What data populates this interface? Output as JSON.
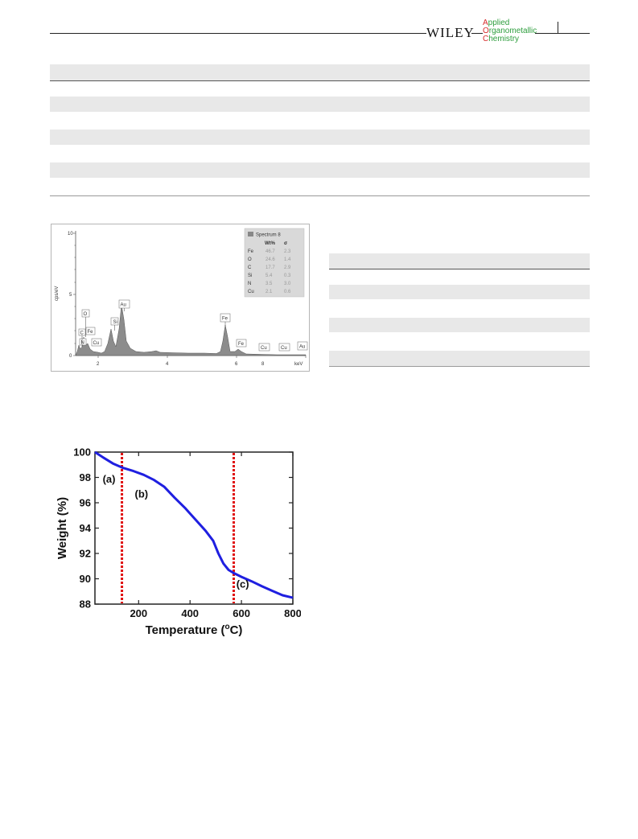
{
  "header": {
    "publisher": "WILEY",
    "journal_lines": [
      {
        "cap": "A",
        "rest": "pplied"
      },
      {
        "cap": "O",
        "rest": "rganometallic"
      },
      {
        "cap": "C",
        "rest": "hemistry"
      }
    ]
  },
  "eds": {
    "legend_title": "Spectrum 8",
    "legend_col1": "Wt%",
    "legend_col2": "σ",
    "legend_rows": [
      {
        "el": "Fe",
        "wt": "46.7",
        "sigma": "2.3"
      },
      {
        "el": "O",
        "wt": "24.6",
        "sigma": "1.4"
      },
      {
        "el": "C",
        "wt": "17.7",
        "sigma": "2.9"
      },
      {
        "el": "Si",
        "wt": "5.4",
        "sigma": "0.3"
      },
      {
        "el": "N",
        "wt": "3.5",
        "sigma": "3.0"
      },
      {
        "el": "Cu",
        "wt": "2.1",
        "sigma": "0.6"
      }
    ],
    "ylabel": "cps/eV",
    "xunit": "keV",
    "y_ticks": [
      "0",
      "5",
      "10"
    ],
    "x_ticks": [
      "2",
      "4",
      "6",
      "8"
    ],
    "peak_labels": [
      "C",
      "N",
      "O",
      "Fe",
      "Cu",
      "Si",
      "Au",
      "Fe",
      "Fe",
      "Cu",
      "Cu",
      "Au"
    ]
  },
  "chart_data": {
    "type": "line",
    "title": "",
    "xlabel": "Temperature (",
    "xlabel_sup": "o",
    "xlabel_end": "C)",
    "ylabel": "Weight (%)",
    "xlim": [
      30,
      800
    ],
    "ylim": [
      88,
      100
    ],
    "x_ticks": [
      200,
      400,
      600,
      800
    ],
    "y_ticks": [
      88,
      90,
      92,
      94,
      96,
      98,
      100
    ],
    "series": [
      {
        "color": "#1f1fe0",
        "x": [
          30,
          60,
          100,
          140,
          180,
          220,
          260,
          300,
          340,
          380,
          420,
          460,
          490,
          510,
          530,
          550,
          570,
          600,
          640,
          680,
          720,
          760,
          800
        ],
        "y": [
          100,
          99.6,
          99.1,
          98.75,
          98.5,
          98.2,
          97.8,
          97.25,
          96.4,
          95.6,
          94.7,
          93.8,
          93.0,
          92.0,
          91.2,
          90.7,
          90.45,
          90.15,
          89.8,
          89.4,
          89.05,
          88.7,
          88.5
        ]
      }
    ],
    "vlines": {
      "color": "#e01010",
      "x": [
        135,
        570
      ]
    },
    "annotations": [
      "(a)",
      "(b)",
      "(c)"
    ],
    "grid": false
  }
}
